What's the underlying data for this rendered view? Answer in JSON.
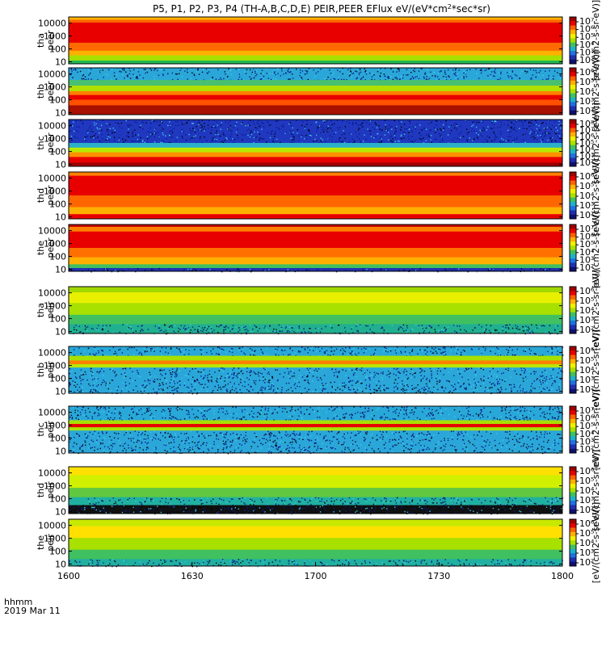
{
  "chart_data": {
    "type": "heatmap",
    "title": "P5, P1, P2, P3, P4 (TH-A,B,C,D,E) PEIR,PEER EFlux eV/(eV*cm",
    "title_sup": "2",
    "title_tail": "*sec*sr)",
    "x_ticks": [
      "1600",
      "1630",
      "1700",
      "1730",
      "1800"
    ],
    "x_label_line1": "hhmm",
    "x_label_line2": "2019 Mar 11",
    "y_ticks": [
      "10000",
      "1000",
      "100",
      "10"
    ],
    "y_scale": "log",
    "y_range_eV": [
      7,
      30000
    ],
    "colorbar_units_text": "[eV/(cm2-s-sr-eV)]",
    "color_scale": "log",
    "panels": [
      {
        "id": "tha_peer",
        "label1": "tha",
        "label2": "peer",
        "cbar_ticks": [
          "10⁷",
          "10⁶",
          "10⁵",
          "10⁴",
          "10³",
          "10²"
        ],
        "bands": [
          [
            0.0,
            0.06,
            "#ffb400"
          ],
          [
            0.06,
            0.12,
            "#ff6600"
          ],
          [
            0.12,
            0.55,
            "#e80000"
          ],
          [
            0.55,
            0.72,
            "#ff6a00"
          ],
          [
            0.72,
            0.82,
            "#ffb000"
          ],
          [
            0.82,
            0.93,
            "#a8e000"
          ],
          [
            0.93,
            1.0,
            "#20b850"
          ]
        ]
      },
      {
        "id": "thb_peer",
        "label1": "thb",
        "label2": "peer",
        "cbar_ticks": [
          "10⁶",
          "10⁵",
          "10⁴",
          "10³",
          "10²"
        ],
        "bands": [
          [
            0.0,
            0.26,
            "#2aa7d8"
          ],
          [
            0.26,
            0.38,
            "#48c070"
          ],
          [
            0.38,
            0.5,
            "#b0e000"
          ],
          [
            0.5,
            0.58,
            "#ff8000"
          ],
          [
            0.58,
            0.68,
            "#e80000"
          ],
          [
            0.68,
            0.8,
            "#ff5000"
          ],
          [
            0.8,
            1.0,
            "#a81000"
          ]
        ]
      },
      {
        "id": "thc_peer",
        "label1": "thc",
        "label2": "peer",
        "cbar_ticks": [
          "10⁸",
          "10⁷",
          "10⁶",
          "10⁵",
          "10⁴",
          "10³",
          "10²"
        ],
        "bands": [
          [
            0.0,
            0.5,
            "#2038c0"
          ],
          [
            0.5,
            0.6,
            "#2ab0c8"
          ],
          [
            0.6,
            0.7,
            "#b8e800"
          ],
          [
            0.7,
            0.8,
            "#ff9000"
          ],
          [
            0.8,
            0.92,
            "#e80000"
          ],
          [
            0.92,
            1.0,
            "#a00000"
          ]
        ]
      },
      {
        "id": "thd_peer",
        "label1": "thd",
        "label2": "peer",
        "cbar_ticks": [
          "10⁶",
          "10⁵",
          "10⁴",
          "10³",
          "10²"
        ],
        "bands": [
          [
            0.0,
            0.08,
            "#ff8000"
          ],
          [
            0.08,
            0.5,
            "#e80000"
          ],
          [
            0.5,
            0.75,
            "#ff6600"
          ],
          [
            0.75,
            0.9,
            "#ffb000"
          ],
          [
            0.9,
            1.0,
            "#e80000"
          ]
        ]
      },
      {
        "id": "the_peer",
        "label1": "the",
        "label2": "peer",
        "cbar_ticks": [
          "10⁷",
          "10⁶",
          "10⁵",
          "10⁴",
          "10³",
          "10²"
        ],
        "bands": [
          [
            0.0,
            0.05,
            "#c00000"
          ],
          [
            0.05,
            0.15,
            "#ff8000"
          ],
          [
            0.15,
            0.5,
            "#e80000"
          ],
          [
            0.5,
            0.7,
            "#ff7000"
          ],
          [
            0.7,
            0.85,
            "#ffb000"
          ],
          [
            0.85,
            0.93,
            "#40c060"
          ],
          [
            0.93,
            1.0,
            "#2030b0"
          ]
        ]
      },
      {
        "id": "tha_peir",
        "label1": "tha",
        "label2": "peir",
        "cbar_ticks": [
          "10⁶",
          "10⁵",
          "10⁴",
          "10³",
          "10²"
        ],
        "bands": [
          [
            0.0,
            0.12,
            "#a0d800"
          ],
          [
            0.12,
            0.35,
            "#e8f000"
          ],
          [
            0.35,
            0.6,
            "#a8e000"
          ],
          [
            0.6,
            0.8,
            "#40c060"
          ],
          [
            0.8,
            1.0,
            "#20b090"
          ]
        ]
      },
      {
        "id": "thb_peir",
        "label1": "thb",
        "label2": "peir",
        "cbar_ticks": [
          "10⁶",
          "10⁵",
          "10⁴",
          "10³",
          "10²"
        ],
        "bands": [
          [
            0.0,
            0.2,
            "#28a8d8"
          ],
          [
            0.2,
            0.3,
            "#a8e000"
          ],
          [
            0.3,
            0.38,
            "#ff8000"
          ],
          [
            0.38,
            0.45,
            "#b8e800"
          ],
          [
            0.45,
            1.0,
            "#2aa7d8"
          ]
        ]
      },
      {
        "id": "thc_peir",
        "label1": "thc",
        "label2": "peir",
        "cbar_ticks": [
          "10⁷",
          "10⁶",
          "10⁵",
          "10⁴",
          "10³",
          "10²"
        ],
        "bands": [
          [
            0.0,
            0.3,
            "#28a8d8"
          ],
          [
            0.3,
            0.38,
            "#a8e000"
          ],
          [
            0.38,
            0.45,
            "#e80000"
          ],
          [
            0.45,
            0.52,
            "#a8e000"
          ],
          [
            0.52,
            1.0,
            "#2aa7d8"
          ]
        ]
      },
      {
        "id": "thd_peir",
        "label1": "thd",
        "label2": "peir",
        "cbar_ticks": [
          "10⁶",
          "10⁵",
          "10⁴",
          "10³",
          "10²"
        ],
        "bands": [
          [
            0.0,
            0.18,
            "#ffe000"
          ],
          [
            0.18,
            0.45,
            "#d0f000"
          ],
          [
            0.45,
            0.65,
            "#60c840"
          ],
          [
            0.65,
            0.82,
            "#20b0a0"
          ],
          [
            0.82,
            1.0,
            "#101010"
          ]
        ]
      },
      {
        "id": "the_peir",
        "label1": "the",
        "label2": "peir",
        "cbar_ticks": [
          "10⁶",
          "10⁵",
          "10⁴",
          "10³",
          "10²"
        ],
        "bands": [
          [
            0.0,
            0.15,
            "#c8e800"
          ],
          [
            0.15,
            0.4,
            "#ffe000"
          ],
          [
            0.4,
            0.65,
            "#a8e000"
          ],
          [
            0.65,
            0.85,
            "#40c060"
          ],
          [
            0.85,
            1.0,
            "#20b0a0"
          ]
        ]
      }
    ]
  }
}
